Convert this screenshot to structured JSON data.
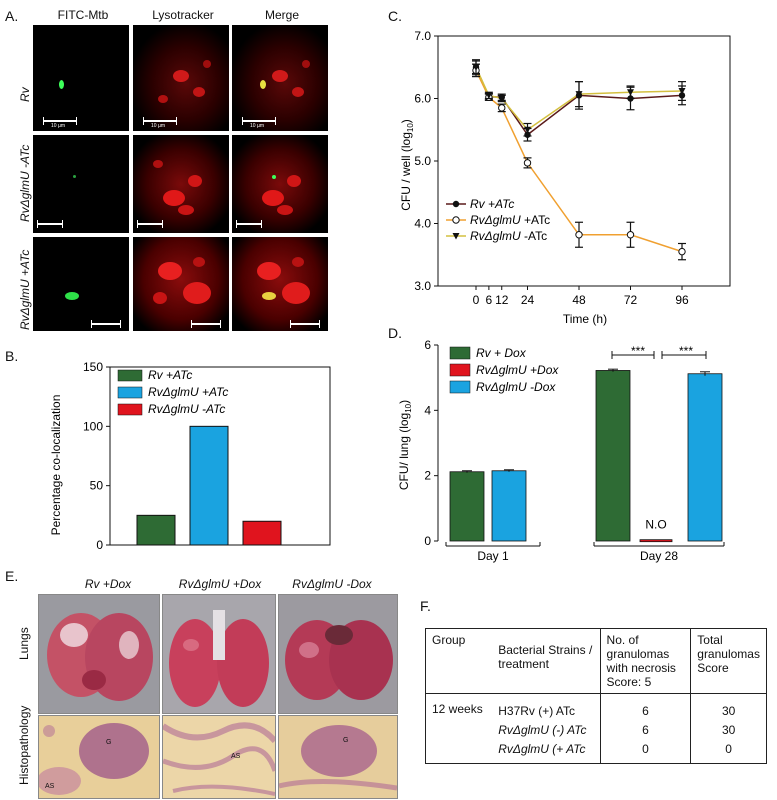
{
  "panels": {
    "a": "A.",
    "b": "B.",
    "c": "C.",
    "d": "D.",
    "e": "E.",
    "f": "F."
  },
  "panel_a": {
    "columns": [
      "FITC-Mtb",
      "Lysotracker",
      "Merge"
    ],
    "rows": [
      "Rv",
      "RvΔglmU -ATc",
      "RvΔglmU +ATc"
    ],
    "scale_label": "10 µm"
  },
  "chart_data": [
    {
      "id": "B",
      "type": "bar",
      "ylabel": "Percentage co-localization",
      "ylim": [
        0,
        150
      ],
      "yticks": [
        0,
        50,
        100,
        150
      ],
      "series": [
        {
          "name": "Rv +ATc",
          "value": 25,
          "color": "#2e6b34"
        },
        {
          "name": "RvΔglmU +ATc",
          "value": 100,
          "color": "#1aa3e0"
        },
        {
          "name": "RvΔglmU -ATc",
          "value": 20,
          "color": "#e0141e"
        }
      ]
    },
    {
      "id": "C",
      "type": "line",
      "xlabel": "Time (h)",
      "ylabel": "CFU / well (log10)",
      "ylim": [
        3.0,
        7.0
      ],
      "yticks": [
        "3.0",
        "4.0",
        "5.0",
        "6.0",
        "7.0"
      ],
      "xticks": [
        0,
        6,
        12,
        24,
        48,
        72,
        96
      ],
      "series": [
        {
          "name": "Rv +ATc",
          "marker": "filled-circle",
          "color": "#5a1a1a",
          "x": [
            0,
            6,
            12,
            24,
            48,
            72,
            96
          ],
          "y": [
            6.5,
            6.03,
            6.02,
            5.42,
            6.05,
            6.0,
            6.05
          ],
          "err": [
            0.12,
            0.05,
            0.05,
            0.1,
            0.22,
            0.18,
            0.15
          ]
        },
        {
          "name": "RvΔglmU +ATc",
          "marker": "open-circle",
          "color": "#f0a030",
          "x": [
            0,
            6,
            12,
            24,
            48,
            72,
            96
          ],
          "y": [
            6.45,
            6.02,
            5.85,
            4.97,
            3.82,
            3.82,
            3.55
          ],
          "err": [
            0.1,
            0.05,
            0.06,
            0.08,
            0.2,
            0.2,
            0.13
          ]
        },
        {
          "name": "RvΔglmU -ATc",
          "marker": "filled-triangle",
          "color": "#d4c040",
          "x": [
            0,
            6,
            12,
            24,
            48,
            72,
            96
          ],
          "y": [
            6.5,
            6.05,
            6.0,
            5.5,
            6.07,
            6.1,
            6.12
          ],
          "err": [
            0.1,
            0.05,
            0.05,
            0.1,
            0.2,
            0.1,
            0.15
          ]
        }
      ]
    },
    {
      "id": "D",
      "type": "bar",
      "ylabel": "CFU/ lung (log10)",
      "ylim": [
        0,
        6
      ],
      "yticks": [
        0,
        2,
        4,
        6
      ],
      "categories": [
        "Day 1",
        "Day 28"
      ],
      "series": [
        {
          "name": "Rv + Dox",
          "color": "#2e6b34",
          "values": [
            2.12,
            5.22
          ],
          "err": [
            0.03,
            0.04
          ]
        },
        {
          "name": "RvΔglmU +Dox",
          "color": "#e0141e",
          "values": [
            null,
            0.04
          ],
          "err": [
            0,
            0
          ]
        },
        {
          "name": "RvΔglmU -Dox",
          "color": "#1aa3e0",
          "values": [
            2.15,
            5.12
          ],
          "err": [
            0.03,
            0.06
          ]
        }
      ],
      "annotations": [
        "***",
        "***",
        "N.O"
      ]
    }
  ],
  "panel_e": {
    "columns": [
      "Rv +Dox",
      "RvΔglmU +Dox",
      "RvΔglmU -Dox"
    ],
    "rows": [
      "Lungs",
      "Histopathology"
    ],
    "histo_labels": [
      "G",
      "AS",
      "AS",
      "G"
    ]
  },
  "panel_f": {
    "headers": [
      "Group",
      "Bacterial Strains / treatment",
      "No. of granulomas with necrosis Score: 5",
      "Total granulomas Score"
    ],
    "group": "12 weeks",
    "rows": [
      {
        "strain": "H37Rv (+) ATc",
        "necrosis": "6",
        "total": "30"
      },
      {
        "strain": "RvΔglmU (-) ATc",
        "necrosis": "6",
        "total": "30"
      },
      {
        "strain": "RvΔglmU (+ ATc",
        "necrosis": "0",
        "total": "0"
      }
    ]
  }
}
